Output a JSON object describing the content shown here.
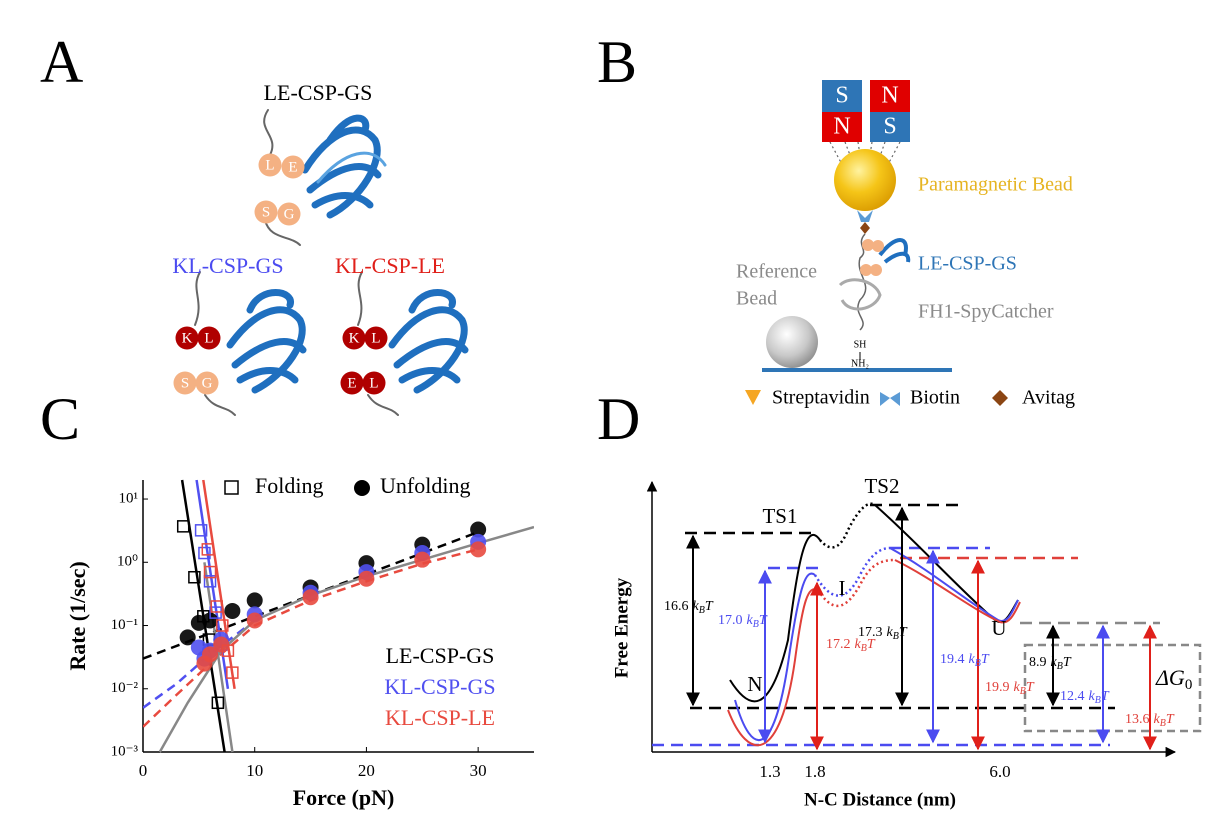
{
  "panel_a": {
    "label": "A",
    "constructs": [
      {
        "name": "LE-CSP-GS",
        "color": "#000000",
        "beads": [
          "L",
          "E",
          "S",
          "G"
        ],
        "bead_colors": [
          "#f4b183",
          "#f4b183",
          "#f4b183",
          "#f4b183"
        ]
      },
      {
        "name": "KL-CSP-GS",
        "color": "#4b4bf0",
        "beads": [
          "K",
          "L",
          "S",
          "G"
        ],
        "bead_colors": [
          "#b00000",
          "#b00000",
          "#f4b183",
          "#f4b183"
        ]
      },
      {
        "name": "KL-CSP-LE",
        "color": "#e0201a",
        "beads": [
          "K",
          "L",
          "E",
          "L"
        ],
        "bead_colors": [
          "#b00000",
          "#b00000",
          "#b00000",
          "#b00000"
        ]
      }
    ]
  },
  "panel_b": {
    "label": "B",
    "magnets": [
      "S",
      "N",
      "N",
      "S"
    ],
    "bead": "Paramagnetic Bead",
    "protein": "LE-CSP-GS",
    "reference": [
      "Reference",
      "Bead"
    ],
    "linker": "FH1-SpyCatcher",
    "surface": [
      "SH",
      "NH₂"
    ],
    "legend": [
      "Streptavidin",
      "Biotin",
      "Avitag"
    ]
  },
  "panel_c_label": "C",
  "chart_data": {
    "type": "scatter",
    "y_label": "Rate (1/sec)",
    "x_label": "Force (pN)",
    "xlim": [
      0,
      35
    ],
    "xticks": [
      0,
      10,
      20,
      30
    ],
    "ylim": [
      0.001,
      20
    ],
    "log_y": true,
    "yticks": [
      {
        "value": 0.001,
        "label": "10⁻³"
      },
      {
        "value": 0.01,
        "label": "10⁻²"
      },
      {
        "value": 0.1,
        "label": "10⁻¹"
      },
      {
        "value": 1,
        "label": "10⁰"
      },
      {
        "value": 10,
        "label": "10¹"
      }
    ],
    "legend_markers": {
      "folding": "Folding",
      "unfolding": "Unfolding"
    },
    "series": [
      {
        "name": "LE-CSP-GS",
        "color": "#000000",
        "folding": {
          "x": [
            3.6,
            4.6,
            5.4,
            5.9,
            6.7
          ],
          "values": [
            3.7,
            0.58,
            0.14,
            0.06,
            0.006
          ]
        },
        "unfolding": {
          "x": [
            4,
            5,
            6,
            8,
            10,
            15,
            20,
            25,
            30
          ],
          "values": [
            0.065,
            0.11,
            0.12,
            0.17,
            0.25,
            0.4,
            0.97,
            1.9,
            3.3
          ]
        }
      },
      {
        "name": "KL-CSP-GS",
        "color": "#5050f0",
        "folding": {
          "x": [
            5.2,
            5.5,
            6,
            6.5,
            7
          ],
          "values": [
            3.2,
            1.4,
            0.5,
            0.16,
            0.05
          ]
        },
        "unfolding": {
          "x": [
            5,
            5.5,
            6,
            7,
            10,
            15,
            20,
            25,
            30
          ],
          "values": [
            0.045,
            0.03,
            0.04,
            0.06,
            0.15,
            0.33,
            0.7,
            1.4,
            2.1
          ]
        }
      },
      {
        "name": "KL-CSP-LE",
        "color": "#e84a3f",
        "folding": {
          "x": [
            5.8,
            6,
            6.6,
            7.1,
            7.6,
            8
          ],
          "values": [
            1.6,
            0.7,
            0.2,
            0.1,
            0.04,
            0.018
          ]
        },
        "unfolding": {
          "x": [
            5.5,
            6,
            7,
            10,
            15,
            20,
            25,
            30
          ],
          "values": [
            0.025,
            0.035,
            0.05,
            0.12,
            0.28,
            0.55,
            1.1,
            1.6
          ]
        }
      }
    ],
    "fits": [
      {
        "color": "#000000",
        "dashed": true,
        "x": [
          0,
          30
        ],
        "values": [
          0.03,
          3
        ]
      },
      {
        "color": "#5050f0",
        "dashed": true,
        "x": [
          0,
          3,
          6,
          10
        ],
        "values": [
          0.005,
          0.012,
          0.035,
          0.12
        ]
      },
      {
        "color": "#e84a3f",
        "dashed": true,
        "x": [
          0,
          3,
          6,
          10,
          15,
          20,
          25,
          30
        ],
        "values": [
          0.0025,
          0.008,
          0.025,
          0.1,
          0.25,
          0.5,
          0.95,
          1.6
        ]
      },
      {
        "color": "#888888",
        "dashed": false,
        "x": [
          1.5,
          4,
          7,
          10,
          15,
          20,
          25,
          30,
          35
        ],
        "values": [
          0.001,
          0.006,
          0.04,
          0.12,
          0.3,
          0.6,
          1.1,
          2,
          3.6
        ]
      },
      {
        "color": "#000000",
        "dashed": false,
        "x": [
          3.5,
          7.3
        ],
        "values": [
          20,
          0.001
        ]
      },
      {
        "color": "#5050f0",
        "dashed": false,
        "x": [
          4.8,
          7.6
        ],
        "values": [
          20,
          0.01
        ]
      },
      {
        "color": "#e84a3f",
        "dashed": false,
        "x": [
          5.4,
          8.2
        ],
        "values": [
          20,
          0.01
        ]
      },
      {
        "color": "#888888",
        "dashed": false,
        "x": [
          5.5,
          8
        ],
        "values": [
          1,
          0.001
        ]
      }
    ]
  },
  "panel_d": {
    "label": "D",
    "y_label": "Free Energy",
    "x_label": "N-C Distance (nm)",
    "x_marks": [
      "1.3",
      "1.8",
      "6.0"
    ],
    "states": [
      "TS1",
      "TS2",
      "I",
      "N",
      "U"
    ],
    "unit": {
      "k": "k",
      "sub": "B",
      "t": "T"
    },
    "energies": [
      {
        "value": "16.6",
        "color": "#000000"
      },
      {
        "value": "17.0",
        "color": "#4b4bf0"
      },
      {
        "value": "17.2",
        "color": "#e0403a"
      },
      {
        "value": "17.3",
        "color": "#000000"
      },
      {
        "value": "19.4",
        "color": "#4b4bf0"
      },
      {
        "value": "19.9",
        "color": "#e0403a"
      },
      {
        "value": "8.9",
        "color": "#000000"
      },
      {
        "value": "12.4",
        "color": "#4b4bf0"
      },
      {
        "value": "13.6",
        "color": "#e0403a"
      }
    ],
    "delta_g": {
      "symbol": "ΔG",
      "sub": "0"
    }
  }
}
